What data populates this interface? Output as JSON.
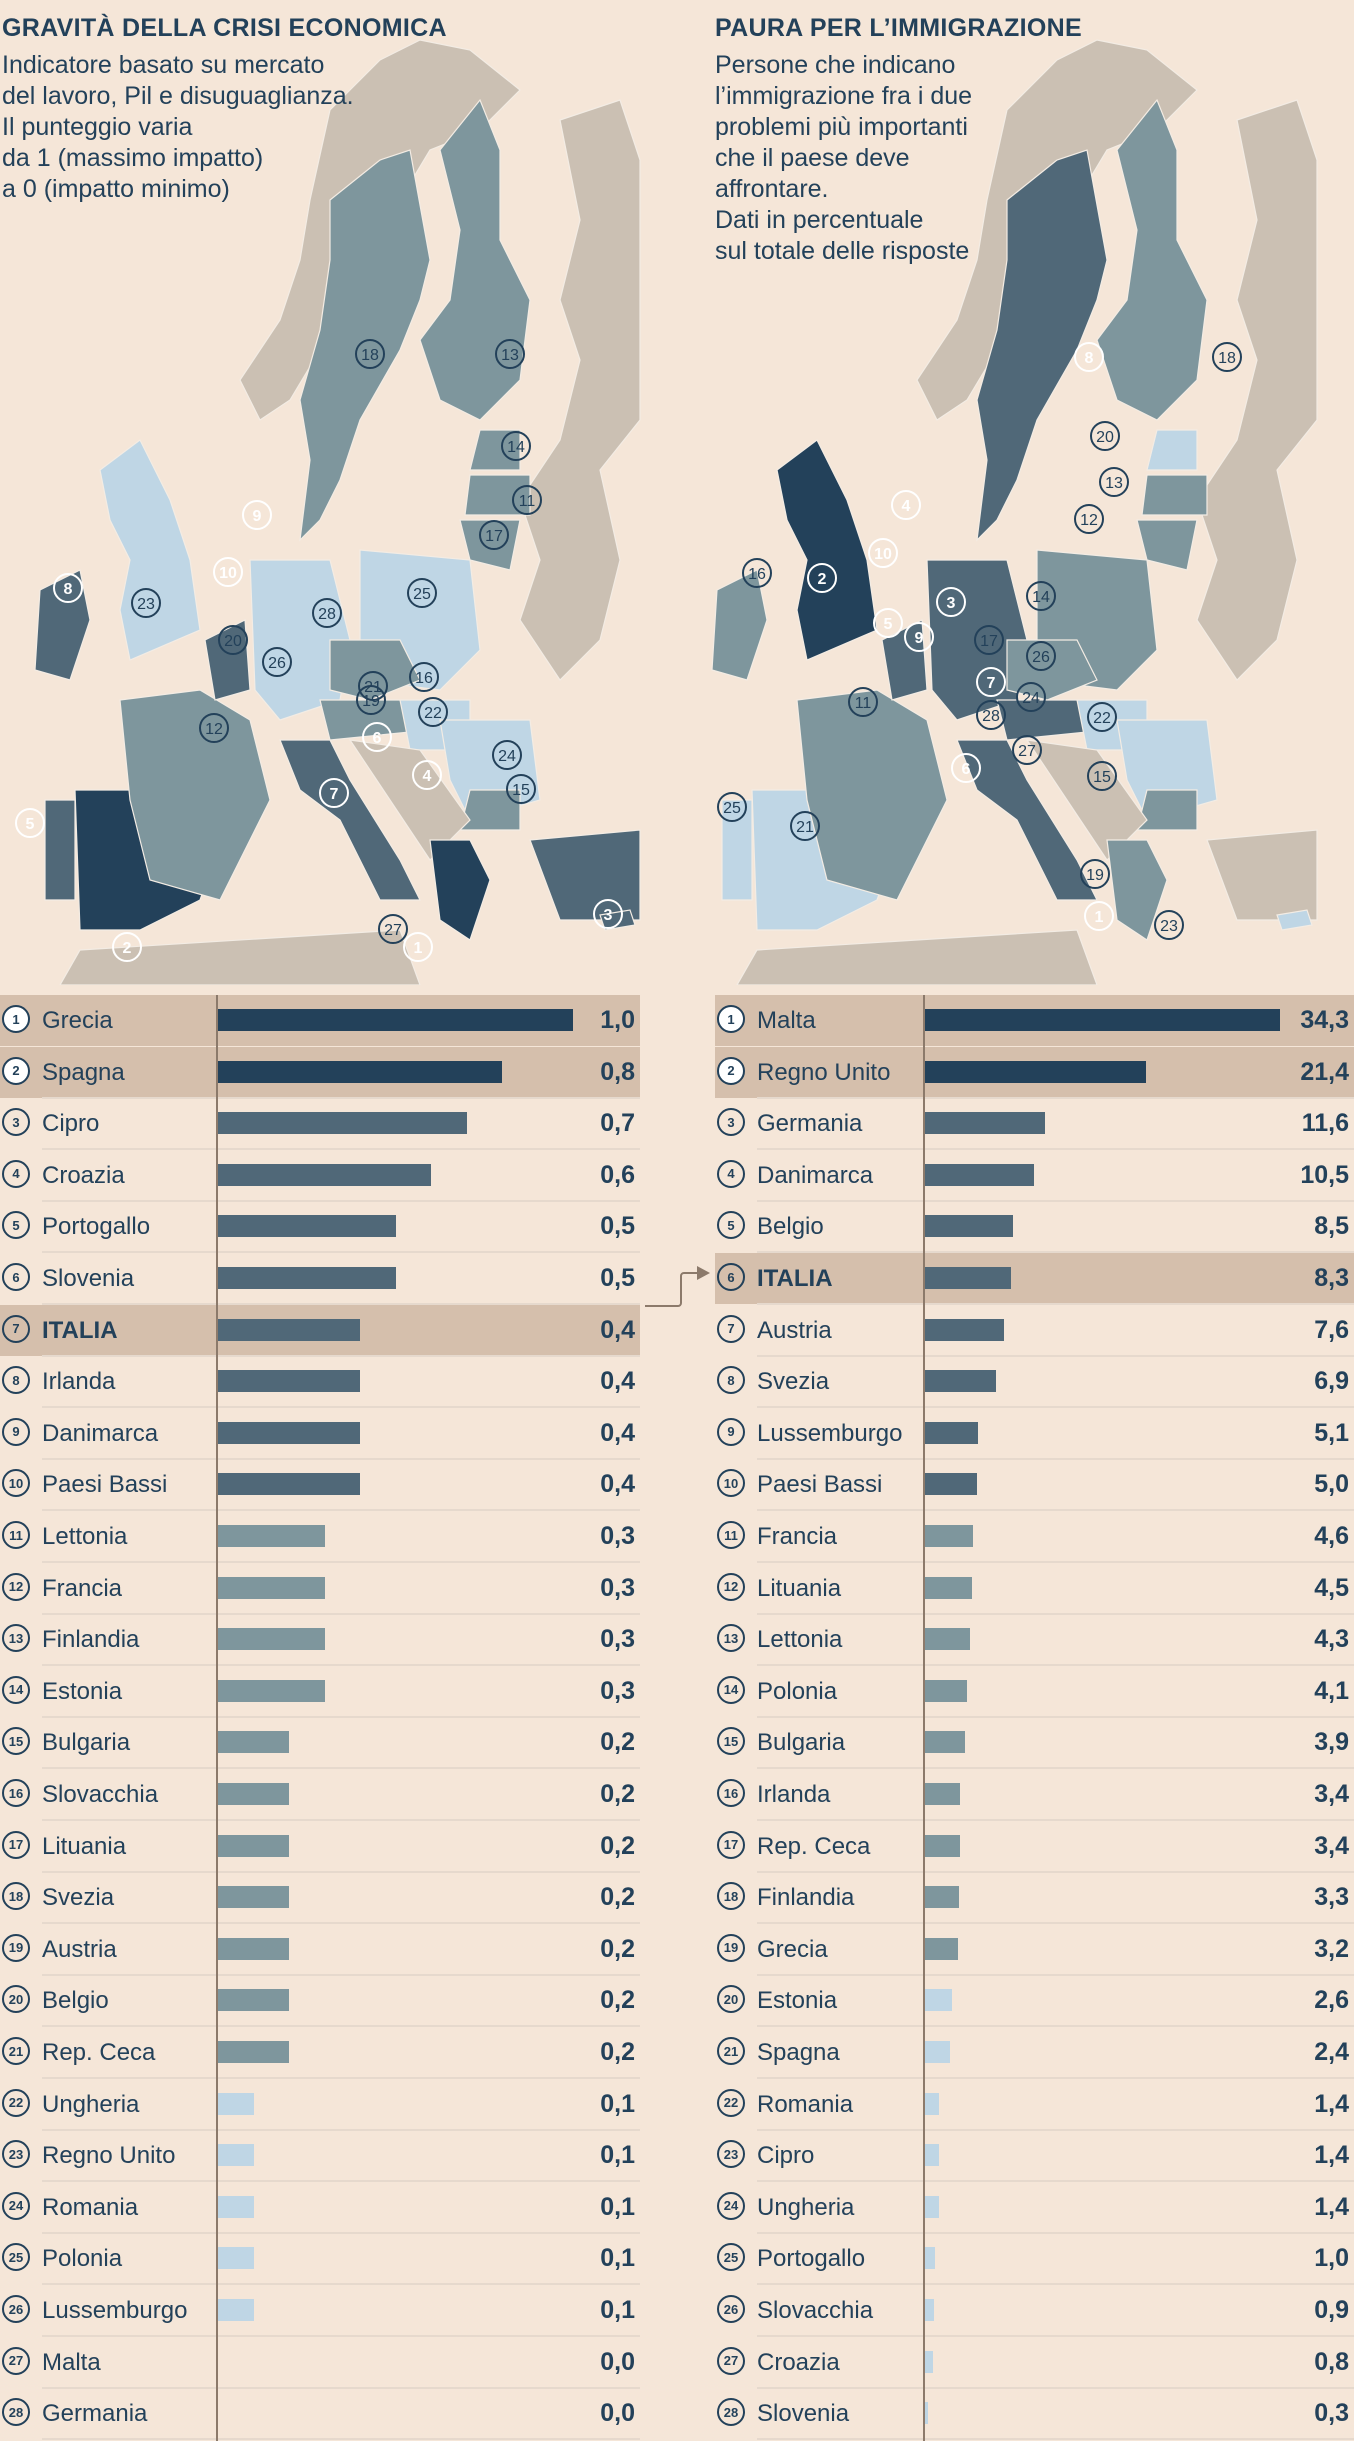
{
  "colors": {
    "background": "#f5e6d8",
    "highlight_row": "#d5bfac",
    "text": "#23415a",
    "level_1": "#23415a",
    "level_2": "#506878",
    "level_3": "#7e969d",
    "level_4": "#bfd6e5",
    "land_other": "#cbc0b3",
    "axis": "#8c7a6b"
  },
  "chart_data": [
    {
      "type": "bar",
      "orientation": "horizontal",
      "title": "GRAVITÀ DELLA CRISI ECONOMICA",
      "subtitle": "Indicatore basato su mercato\ndel lavoro, Pil e disuguaglianza.\nIl punteggio varia\nda 1 (massimo impatto)\na 0 (impatto minimo)",
      "xlim": [
        0,
        1.0
      ],
      "highlight": [
        "Grecia",
        "Spagna",
        "ITALIA"
      ],
      "categories": [
        "Grecia",
        "Spagna",
        "Cipro",
        "Croazia",
        "Portogallo",
        "Slovenia",
        "ITALIA",
        "Irlanda",
        "Danimarca",
        "Paesi Bassi",
        "Lettonia",
        "Francia",
        "Finlandia",
        "Estonia",
        "Bulgaria",
        "Slovacchia",
        "Lituania",
        "Svezia",
        "Austria",
        "Belgio",
        "Rep. Ceca",
        "Ungheria",
        "Regno Unito",
        "Romania",
        "Polonia",
        "Lussemburgo",
        "Malta",
        "Germania"
      ],
      "values": [
        1.0,
        0.8,
        0.7,
        0.6,
        0.5,
        0.5,
        0.4,
        0.4,
        0.4,
        0.4,
        0.3,
        0.3,
        0.3,
        0.3,
        0.2,
        0.2,
        0.2,
        0.2,
        0.2,
        0.2,
        0.2,
        0.1,
        0.1,
        0.1,
        0.1,
        0.1,
        0.0,
        0.0
      ],
      "labels": [
        "1,0",
        "0,8",
        "0,7",
        "0,6",
        "0,5",
        "0,5",
        "0,4",
        "0,4",
        "0,4",
        "0,4",
        "0,3",
        "0,3",
        "0,3",
        "0,3",
        "0,2",
        "0,2",
        "0,2",
        "0,2",
        "0,2",
        "0,2",
        "0,2",
        "0,1",
        "0,1",
        "0,1",
        "0,1",
        "0,1",
        "0,0",
        "0,0"
      ],
      "levels": [
        1,
        1,
        2,
        2,
        2,
        2,
        2,
        2,
        2,
        2,
        3,
        3,
        3,
        3,
        3,
        3,
        3,
        3,
        3,
        3,
        3,
        4,
        4,
        4,
        4,
        4,
        4,
        4
      ]
    },
    {
      "type": "bar",
      "orientation": "horizontal",
      "title": "PAURA PER L’IMMIGRAZIONE",
      "subtitle": "Persone che indicano\nl’immigrazione fra i due\nproblemi più importanti\nche il paese deve\naffrontare.\nDati in percentuale\nsul totale delle risposte",
      "xlim": [
        0,
        34.3
      ],
      "unit": "%",
      "highlight": [
        "Malta",
        "Regno Unito",
        "ITALIA"
      ],
      "categories": [
        "Malta",
        "Regno Unito",
        "Germania",
        "Danimarca",
        "Belgio",
        "ITALIA",
        "Austria",
        "Svezia",
        "Lussemburgo",
        "Paesi Bassi",
        "Francia",
        "Lituania",
        "Lettonia",
        "Polonia",
        "Bulgaria",
        "Irlanda",
        "Rep. Ceca",
        "Finlandia",
        "Grecia",
        "Estonia",
        "Spagna",
        "Romania",
        "Cipro",
        "Ungheria",
        "Portogallo",
        "Slovacchia",
        "Croazia",
        "Slovenia"
      ],
      "values": [
        34.3,
        21.4,
        11.6,
        10.5,
        8.5,
        8.3,
        7.6,
        6.9,
        5.1,
        5.0,
        4.6,
        4.5,
        4.3,
        4.1,
        3.9,
        3.4,
        3.4,
        3.3,
        3.2,
        2.6,
        2.4,
        1.4,
        1.4,
        1.4,
        1.0,
        0.9,
        0.8,
        0.3
      ],
      "labels": [
        "34,3",
        "21,4",
        "11,6",
        "10,5",
        "8,5",
        "8,3",
        "7,6",
        "6,9",
        "5,1",
        "5,0",
        "4,6",
        "4,5",
        "4,3",
        "4,1",
        "3,9",
        "3,4",
        "3,4",
        "3,3",
        "3,2",
        "2,6",
        "2,4",
        "1,4",
        "1,4",
        "1,4",
        "1,0",
        "0,9",
        "0,8",
        "0,3"
      ],
      "levels": [
        1,
        1,
        2,
        2,
        2,
        2,
        2,
        2,
        2,
        2,
        3,
        3,
        3,
        3,
        3,
        3,
        3,
        3,
        3,
        4,
        4,
        4,
        4,
        4,
        4,
        4,
        4,
        4
      ]
    }
  ],
  "maps": [
    {
      "name": "crisi",
      "markers": [
        {
          "n": "1",
          "level": 1
        },
        {
          "n": "2",
          "level": 1
        },
        {
          "n": "3",
          "level": 2
        },
        {
          "n": "4",
          "level": 2
        },
        {
          "n": "5",
          "level": 2
        },
        {
          "n": "6",
          "level": 2
        },
        {
          "n": "7",
          "level": 2
        },
        {
          "n": "8",
          "level": 2
        },
        {
          "n": "9",
          "level": 2
        },
        {
          "n": "10",
          "level": 2
        },
        {
          "n": "11",
          "level": 3
        },
        {
          "n": "12",
          "level": 3
        },
        {
          "n": "13",
          "level": 3
        },
        {
          "n": "14",
          "level": 3
        },
        {
          "n": "15",
          "level": 3
        },
        {
          "n": "16",
          "level": 3
        },
        {
          "n": "17",
          "level": 3
        },
        {
          "n": "18",
          "level": 3
        },
        {
          "n": "19",
          "level": 3
        },
        {
          "n": "20",
          "level": 3
        },
        {
          "n": "21",
          "level": 3
        },
        {
          "n": "22",
          "level": 4
        },
        {
          "n": "23",
          "level": 4
        },
        {
          "n": "24",
          "level": 4
        },
        {
          "n": "25",
          "level": 4
        },
        {
          "n": "26",
          "level": 4
        },
        {
          "n": "27",
          "level": 4
        },
        {
          "n": "28",
          "level": 4
        }
      ]
    },
    {
      "name": "immigrazione",
      "markers": [
        {
          "n": "1",
          "level": 1
        },
        {
          "n": "2",
          "level": 1
        },
        {
          "n": "3",
          "level": 2
        },
        {
          "n": "4",
          "level": 2
        },
        {
          "n": "5",
          "level": 2
        },
        {
          "n": "6",
          "level": 2
        },
        {
          "n": "7",
          "level": 2
        },
        {
          "n": "8",
          "level": 2
        },
        {
          "n": "9",
          "level": 2
        },
        {
          "n": "10",
          "level": 2
        },
        {
          "n": "11",
          "level": 3
        },
        {
          "n": "12",
          "level": 3
        },
        {
          "n": "13",
          "level": 3
        },
        {
          "n": "14",
          "level": 3
        },
        {
          "n": "15",
          "level": 3
        },
        {
          "n": "16",
          "level": 3
        },
        {
          "n": "17",
          "level": 3
        },
        {
          "n": "18",
          "level": 3
        },
        {
          "n": "19",
          "level": 3
        },
        {
          "n": "20",
          "level": 4
        },
        {
          "n": "21",
          "level": 4
        },
        {
          "n": "22",
          "level": 4
        },
        {
          "n": "23",
          "level": 4
        },
        {
          "n": "24",
          "level": 4
        },
        {
          "n": "25",
          "level": 4
        },
        {
          "n": "26",
          "level": 4
        },
        {
          "n": "27",
          "level": 4
        },
        {
          "n": "28",
          "level": 4
        }
      ]
    }
  ]
}
